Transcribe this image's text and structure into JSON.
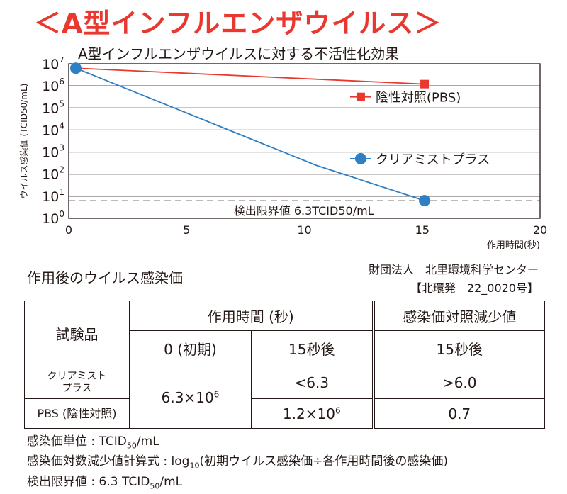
{
  "banner": "＜A型インフルエンザウイルス＞",
  "chart_data": {
    "type": "line",
    "title": "A型インフルエンザウイルスに対する不活性化効果",
    "ylabel": "ウイルス感染価 (TCID50/mL)",
    "xlabel": "作用時間(秒)",
    "xlim": [
      0,
      20
    ],
    "xticks": [
      0,
      5,
      10,
      15,
      20
    ],
    "ylim_log10": [
      0,
      7
    ],
    "yscale": "log",
    "yticks": [
      {
        "base": "10",
        "exp": "7"
      },
      {
        "base": "10",
        "exp": "6"
      },
      {
        "base": "10",
        "exp": "5"
      },
      {
        "base": "10",
        "exp": "4"
      },
      {
        "base": "10",
        "exp": "3"
      },
      {
        "base": "10",
        "exp": "2"
      },
      {
        "base": "10",
        "exp": "1"
      },
      {
        "base": "10",
        "exp": "0"
      }
    ],
    "grid": true,
    "series": [
      {
        "name": "陰性対照(PBS)",
        "color": "#e8382f",
        "marker": "square",
        "x": [
          0.3,
          15.1
        ],
        "y_log10": [
          6.8,
          6.08
        ]
      },
      {
        "name": "クリアミストプラス",
        "color": "#2f7fc4",
        "marker": "circle",
        "x": [
          0.3,
          10.5,
          15.1
        ],
        "y_log10": [
          6.8,
          2.4,
          0.8
        ]
      }
    ],
    "detection_limit": {
      "y_log10": 0.8,
      "label": "検出限界値 6.3TCID50/mL"
    }
  },
  "section_title": "作用後のウイルス感染価",
  "org": {
    "line1": "財団法人　北里環境科学センター",
    "line2": "【北環発　22_0020号】"
  },
  "table": {
    "col_sample": "試験品",
    "col_time": "作用時間 (秒)",
    "col_reduction": "感染価対照減少値",
    "sub_initial": "0 (初期)",
    "sub_15s": "15秒後",
    "sub_red_15s": "15秒後",
    "initial_value_main": "6.3×10",
    "initial_value_exp": "6",
    "rows": [
      {
        "name": "クリアミスト\nプラス",
        "v15": "<6.3",
        "red": ">6.0"
      },
      {
        "name": "PBS (陰性対照)",
        "v15_main": "1.2×10",
        "v15_exp": "6",
        "red": "0.7"
      }
    ]
  },
  "notes": {
    "unit_pre": "感染価単位 : TCID",
    "unit_sub": "50",
    "unit_post": "/mL",
    "formula_pre": "感染価対数減少値計算式 : log",
    "formula_sub": "10",
    "formula_post": "(初期ウイルス感染価÷各作用時間後の感染価)",
    "limit_pre": "検出限界値 : 6.3 TCID",
    "limit_sub": "50",
    "limit_post": "/mL"
  }
}
